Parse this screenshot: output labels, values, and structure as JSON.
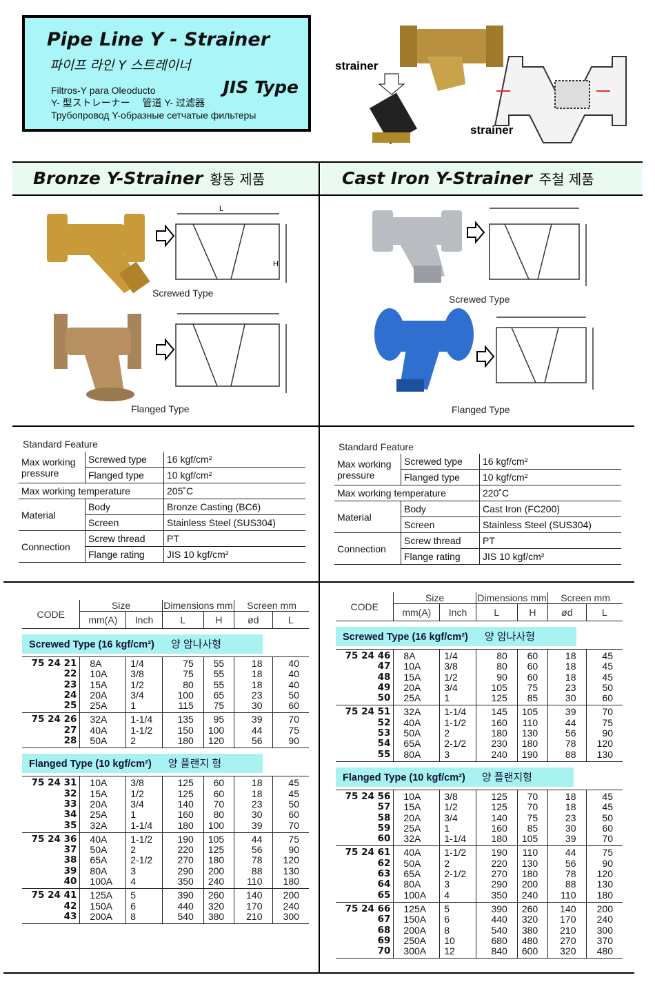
{
  "header": {
    "title": "Pipe Line Y - Strainer",
    "title_ko": "파이프 라인 Y 스트레이너",
    "spanish": "Filtros-Y para Oleoducto",
    "japanese_chinese": "Y- 型ストレーナー　 管道 Y- 过滤器",
    "russian": "Трубопровод Y-образные сетчатые фильтеры",
    "type": "JIS Type",
    "strainer_label_1": "strainer",
    "strainer_label_2": "strainer"
  },
  "colors": {
    "title_box": "#a9f5f8",
    "band": "#a9f2f2",
    "bronze": "#c89a3a",
    "cast_iron": "#2f6fd0"
  },
  "bronze": {
    "heading": "Bronze Y-Strainer",
    "heading_ko": "황동 제품",
    "screwed_caption": "Screwed Type",
    "flanged_caption": "Flanged Type",
    "features_title": "Standard Feature",
    "features": [
      {
        "label": "Max working pressure",
        "items": [
          [
            "Screwed type",
            "16 kgf/cm²"
          ],
          [
            "Flanged type",
            "10 kgf/cm²"
          ]
        ]
      },
      {
        "label": "Max working temperature",
        "value": "205˚C"
      },
      {
        "label": "Material",
        "items": [
          [
            "Body",
            "Bronze Casting (BC6)"
          ],
          [
            "Screen",
            "Stainless Steel (SUS304)"
          ]
        ]
      },
      {
        "label": "Connection",
        "items": [
          [
            "Screw thread",
            "PT"
          ],
          [
            "Flange rating",
            "JIS 10 kgf/cm²"
          ]
        ]
      }
    ],
    "table": {
      "sections": [
        {
          "title": "Screwed Type (16 kgf/cm²)",
          "title_ko": "양 암나사형",
          "groups": [
            [
              [
                "75 24 21",
                "8A",
                "1/4",
                "75",
                "55",
                "18",
                "40"
              ],
              [
                "22",
                "10A",
                "3/8",
                "75",
                "55",
                "18",
                "40"
              ],
              [
                "23",
                "15A",
                "1/2",
                "80",
                "55",
                "18",
                "40"
              ],
              [
                "24",
                "20A",
                "3/4",
                "100",
                "65",
                "23",
                "50"
              ],
              [
                "25",
                "25A",
                "1",
                "115",
                "75",
                "30",
                "60"
              ]
            ],
            [
              [
                "75 24 26",
                "32A",
                "1-1/4",
                "135",
                "95",
                "39",
                "70"
              ],
              [
                "27",
                "40A",
                "1-1/2",
                "150",
                "100",
                "44",
                "75"
              ],
              [
                "28",
                "50A",
                "2",
                "180",
                "120",
                "56",
                "90"
              ]
            ]
          ]
        },
        {
          "title": "Flanged Type (10 kgf/cm²)",
          "title_ko": "양 플랜지 형",
          "groups": [
            [
              [
                "75 24 31",
                "10A",
                "3/8",
                "125",
                "60",
                "18",
                "45"
              ],
              [
                "32",
                "15A",
                "1/2",
                "125",
                "60",
                "18",
                "45"
              ],
              [
                "33",
                "20A",
                "3/4",
                "140",
                "70",
                "23",
                "50"
              ],
              [
                "34",
                "25A",
                "1",
                "160",
                "80",
                "30",
                "60"
              ],
              [
                "35",
                "32A",
                "1-1/4",
                "180",
                "100",
                "39",
                "70"
              ]
            ],
            [
              [
                "75 24 36",
                "40A",
                "1-1/2",
                "190",
                "105",
                "44",
                "75"
              ],
              [
                "37",
                "50A",
                "2",
                "220",
                "125",
                "56",
                "90"
              ],
              [
                "38",
                "65A",
                "2-1/2",
                "270",
                "180",
                "78",
                "120"
              ],
              [
                "39",
                "80A",
                "3",
                "290",
                "200",
                "88",
                "130"
              ],
              [
                "40",
                "100A",
                "4",
                "350",
                "240",
                "110",
                "180"
              ]
            ],
            [
              [
                "75 24 41",
                "125A",
                "5",
                "390",
                "260",
                "140",
                "200"
              ],
              [
                "42",
                "150A",
                "6",
                "440",
                "320",
                "170",
                "240"
              ],
              [
                "43",
                "200A",
                "8",
                "540",
                "380",
                "210",
                "300"
              ]
            ]
          ]
        }
      ]
    }
  },
  "cast_iron": {
    "heading": "Cast Iron Y-Strainer",
    "heading_ko": "주철 제품",
    "screwed_caption": "Screwed Type",
    "flanged_caption": "Flanged Type",
    "features_title": "Standard Feature",
    "features": [
      {
        "label": "Max working pressure",
        "items": [
          [
            "Screwed type",
            "16 kgf/cm²"
          ],
          [
            "Flanged type",
            "10 kgf/cm²"
          ]
        ]
      },
      {
        "label": "Max working temperature",
        "value": "220˚C"
      },
      {
        "label": "Material",
        "items": [
          [
            "Body",
            "Cast Iron (FC200)"
          ],
          [
            "Screen",
            "Stainless Steel (SUS304)"
          ]
        ]
      },
      {
        "label": "Connection",
        "items": [
          [
            "Screw thread",
            "PT"
          ],
          [
            "Flange rating",
            "JIS 10 kgf/cm²"
          ]
        ]
      }
    ],
    "table": {
      "sections": [
        {
          "title": "Screwed Type (16 kgf/cm²)",
          "title_ko": "양 암나사형",
          "groups": [
            [
              [
                "75 24 46",
                "8A",
                "1/4",
                "80",
                "60",
                "18",
                "45"
              ],
              [
                "47",
                "10A",
                "3/8",
                "80",
                "60",
                "18",
                "45"
              ],
              [
                "48",
                "15A",
                "1/2",
                "90",
                "60",
                "18",
                "45"
              ],
              [
                "49",
                "20A",
                "3/4",
                "105",
                "75",
                "23",
                "50"
              ],
              [
                "50",
                "25A",
                "1",
                "125",
                "85",
                "30",
                "60"
              ]
            ],
            [
              [
                "75 24 51",
                "32A",
                "1-1/4",
                "145",
                "105",
                "39",
                "70"
              ],
              [
                "52",
                "40A",
                "1-1/2",
                "160",
                "110",
                "44",
                "75"
              ],
              [
                "53",
                "50A",
                "2",
                "180",
                "130",
                "56",
                "90"
              ],
              [
                "54",
                "65A",
                "2-1/2",
                "230",
                "180",
                "78",
                "120"
              ],
              [
                "55",
                "80A",
                "3",
                "240",
                "190",
                "88",
                "130"
              ]
            ]
          ]
        },
        {
          "title": "Flanged Type (10 kgf/cm²)",
          "title_ko": "양 플랜지형",
          "groups": [
            [
              [
                "75 24 56",
                "10A",
                "3/8",
                "125",
                "70",
                "18",
                "45"
              ],
              [
                "57",
                "15A",
                "1/2",
                "125",
                "70",
                "18",
                "45"
              ],
              [
                "58",
                "20A",
                "3/4",
                "140",
                "75",
                "23",
                "50"
              ],
              [
                "59",
                "25A",
                "1",
                "160",
                "85",
                "30",
                "60"
              ],
              [
                "60",
                "32A",
                "1-1/4",
                "180",
                "105",
                "39",
                "70"
              ]
            ],
            [
              [
                "75 24 61",
                "40A",
                "1-1/2",
                "190",
                "110",
                "44",
                "75"
              ],
              [
                "62",
                "50A",
                "2",
                "220",
                "130",
                "56",
                "90"
              ],
              [
                "63",
                "65A",
                "2-1/2",
                "270",
                "180",
                "78",
                "120"
              ],
              [
                "64",
                "80A",
                "3",
                "290",
                "200",
                "88",
                "130"
              ],
              [
                "65",
                "100A",
                "4",
                "350",
                "240",
                "110",
                "180"
              ]
            ],
            [
              [
                "75 24 66",
                "125A",
                "5",
                "390",
                "260",
                "140",
                "200"
              ],
              [
                "67",
                "150A",
                "6",
                "440",
                "320",
                "170",
                "240"
              ],
              [
                "68",
                "200A",
                "8",
                "540",
                "380",
                "210",
                "300"
              ],
              [
                "69",
                "250A",
                "10",
                "680",
                "480",
                "270",
                "370"
              ],
              [
                "70",
                "300A",
                "12",
                "840",
                "600",
                "320",
                "480"
              ]
            ]
          ]
        }
      ]
    }
  },
  "table_headers": {
    "code": "CODE",
    "size": "Size",
    "dimensions": "Dimensions mm",
    "screen": "Screen mm",
    "mm": "mm(A)",
    "inch": "Inch",
    "dim_l": "L",
    "dim_h": "H",
    "od": "ød",
    "screen_l": "L"
  },
  "drawing_labels": {
    "length": "L",
    "height": "H"
  }
}
